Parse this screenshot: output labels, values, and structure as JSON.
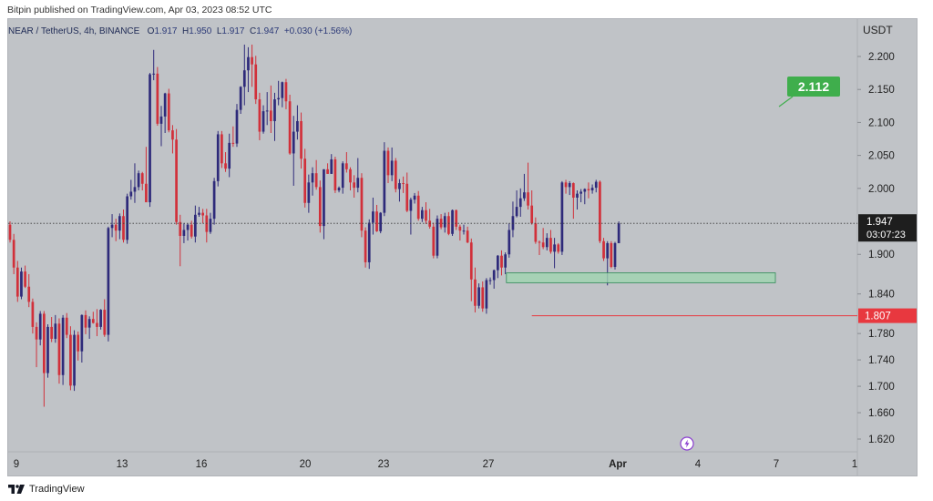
{
  "header": {
    "published_text": "Bitpin published on TradingView.com, Apr 03, 2023 08:52 UTC"
  },
  "symbol": {
    "name": "NEAR / TetherUS, 4h, BINANCE",
    "o_label": "O",
    "o_value": "1.917",
    "h_label": "H",
    "h_value": "1.950",
    "l_label": "L",
    "l_value": "1.917",
    "c_label": "C",
    "c_value": "1.947",
    "change": "+0.030 (+1.56%)"
  },
  "footer": {
    "brand": "TradingView"
  },
  "colors": {
    "up": "#2e2a7a",
    "down": "#d1303a",
    "zone_fill": "#9fd5b0",
    "zone_stroke": "#2e8b57",
    "target_green": "#3fae4c",
    "stop_red": "#e8383f",
    "price_box": "#1e1e1e",
    "plot_bg": "#c0c3c7"
  },
  "chart_data": {
    "type": "candlestick",
    "title": "NEAR / TetherUS, 4h, BINANCE",
    "y_axis_unit": "USDT",
    "ylim": [
      1.595,
      2.26
    ],
    "y_ticks": [
      "2.200",
      "2.150",
      "2.100",
      "2.050",
      "2.000",
      "1.900",
      "1.840",
      "1.780",
      "1.740",
      "1.700",
      "1.660",
      "1.620"
    ],
    "x_tick_labels": [
      "9",
      "13",
      "16",
      "20",
      "23",
      "27",
      "Apr",
      "4",
      "7",
      "1"
    ],
    "current_price": {
      "price": 1.947,
      "label": "1.947",
      "countdown": "03:07:23"
    },
    "annotations": {
      "target": {
        "label": "2.112",
        "value": 2.112
      },
      "stop": {
        "label": "1.807",
        "value": 1.807
      },
      "demand_zone": {
        "low": 1.857,
        "high": 1.872
      }
    },
    "candles": [
      [
        1.945,
        1.95,
        1.918,
        1.922
      ],
      [
        1.922,
        1.931,
        1.87,
        1.88
      ],
      [
        1.88,
        1.89,
        1.828,
        1.836
      ],
      [
        1.836,
        1.88,
        1.832,
        1.874
      ],
      [
        1.874,
        1.883,
        1.849,
        1.851
      ],
      [
        1.851,
        1.87,
        1.82,
        1.828
      ],
      [
        1.828,
        1.833,
        1.78,
        1.79
      ],
      [
        1.79,
        1.797,
        1.729,
        1.771
      ],
      [
        1.771,
        1.814,
        1.762,
        1.81
      ],
      [
        1.81,
        1.814,
        1.669,
        1.72
      ],
      [
        1.72,
        1.794,
        1.713,
        1.79
      ],
      [
        1.79,
        1.805,
        1.767,
        1.772
      ],
      [
        1.772,
        1.808,
        1.766,
        1.795
      ],
      [
        1.795,
        1.803,
        1.704,
        1.717
      ],
      [
        1.717,
        1.808,
        1.702,
        1.804
      ],
      [
        1.804,
        1.811,
        1.773,
        1.778
      ],
      [
        1.778,
        1.791,
        1.694,
        1.701
      ],
      [
        1.701,
        1.785,
        1.693,
        1.778
      ],
      [
        1.778,
        1.783,
        1.739,
        1.753
      ],
      [
        1.753,
        1.809,
        1.736,
        1.808
      ],
      [
        1.808,
        1.815,
        1.779,
        1.789
      ],
      [
        1.789,
        1.806,
        1.772,
        1.802
      ],
      [
        1.802,
        1.813,
        1.795,
        1.796
      ],
      [
        1.796,
        1.817,
        1.776,
        1.79
      ],
      [
        1.79,
        1.817,
        1.786,
        1.816
      ],
      [
        1.816,
        1.832,
        1.775,
        1.778
      ],
      [
        1.778,
        1.942,
        1.768,
        1.94
      ],
      [
        1.94,
        1.961,
        1.926,
        1.945
      ],
      [
        1.945,
        1.954,
        1.92,
        1.936
      ],
      [
        1.936,
        1.962,
        1.923,
        1.958
      ],
      [
        1.958,
        1.968,
        1.918,
        1.922
      ],
      [
        1.922,
        1.992,
        1.916,
        1.988
      ],
      [
        1.988,
        2.013,
        1.983,
        1.995
      ],
      [
        1.995,
        2.038,
        1.978,
        2.002
      ],
      [
        2.002,
        2.027,
        1.997,
        2.023
      ],
      [
        2.023,
        2.025,
        1.997,
        2.007
      ],
      [
        2.007,
        2.063,
        1.979,
        1.979
      ],
      [
        1.979,
        2.175,
        1.972,
        2.173
      ],
      [
        2.173,
        2.21,
        2.164,
        2.174
      ],
      [
        2.174,
        2.184,
        2.095,
        2.098
      ],
      [
        2.098,
        2.125,
        2.064,
        2.109
      ],
      [
        2.109,
        2.145,
        2.084,
        2.144
      ],
      [
        2.144,
        2.151,
        2.085,
        2.088
      ],
      [
        2.088,
        2.096,
        2.053,
        2.074
      ],
      [
        2.074,
        2.09,
        1.945,
        1.949
      ],
      [
        1.949,
        1.96,
        1.882,
        1.928
      ],
      [
        1.928,
        1.947,
        1.917,
        1.937
      ],
      [
        1.937,
        1.947,
        1.921,
        1.945
      ],
      [
        1.945,
        1.951,
        1.924,
        1.927
      ],
      [
        1.927,
        1.974,
        1.918,
        1.96
      ],
      [
        1.96,
        1.972,
        1.957,
        1.963
      ],
      [
        1.963,
        1.969,
        1.947,
        1.959
      ],
      [
        1.959,
        1.969,
        1.918,
        1.934
      ],
      [
        1.934,
        1.963,
        1.931,
        1.954
      ],
      [
        1.954,
        2.016,
        1.945,
        2.011
      ],
      [
        2.011,
        2.087,
        2.003,
        2.082
      ],
      [
        2.082,
        2.087,
        2.031,
        2.038
      ],
      [
        2.038,
        2.055,
        2.025,
        2.03
      ],
      [
        2.03,
        2.083,
        2.017,
        2.069
      ],
      [
        2.069,
        2.094,
        2.063,
        2.068
      ],
      [
        2.068,
        2.128,
        2.063,
        2.119
      ],
      [
        2.119,
        2.155,
        2.113,
        2.154
      ],
      [
        2.154,
        2.218,
        2.126,
        2.179
      ],
      [
        2.179,
        2.214,
        2.146,
        2.199
      ],
      [
        2.199,
        2.218,
        2.154,
        2.188
      ],
      [
        2.188,
        2.201,
        2.128,
        2.135
      ],
      [
        2.135,
        2.145,
        2.073,
        2.086
      ],
      [
        2.086,
        2.126,
        2.083,
        2.117
      ],
      [
        2.117,
        2.146,
        2.096,
        2.118
      ],
      [
        2.118,
        2.156,
        2.084,
        2.102
      ],
      [
        2.102,
        2.145,
        2.072,
        2.135
      ],
      [
        2.135,
        2.163,
        2.126,
        2.137
      ],
      [
        2.137,
        2.162,
        2.123,
        2.161
      ],
      [
        2.161,
        2.166,
        2.12,
        2.132
      ],
      [
        2.132,
        2.142,
        2.051,
        2.053
      ],
      [
        2.053,
        2.11,
        2.004,
        2.086
      ],
      [
        2.086,
        2.126,
        2.074,
        2.102
      ],
      [
        2.102,
        2.115,
        2.03,
        2.045
      ],
      [
        2.045,
        2.06,
        1.971,
        1.978
      ],
      [
        1.978,
        2.021,
        1.963,
        2.009
      ],
      [
        2.009,
        2.032,
        1.989,
        2.023
      ],
      [
        2.023,
        2.043,
        1.998,
        2.002
      ],
      [
        2.002,
        2.012,
        1.933,
        1.943
      ],
      [
        1.943,
        2.029,
        1.923,
        2.029
      ],
      [
        2.029,
        2.038,
        2.022,
        2.022
      ],
      [
        2.022,
        2.052,
        2.022,
        2.044
      ],
      [
        2.044,
        2.048,
        1.993,
        1.997
      ],
      [
        1.997,
        2.003,
        1.994,
        2.001
      ],
      [
        2.001,
        2.041,
        1.992,
        2.038
      ],
      [
        2.038,
        2.055,
        2.024,
        2.029
      ],
      [
        2.029,
        2.032,
        1.997,
        2.009
      ],
      [
        2.009,
        2.02,
        1.986,
        2.001
      ],
      [
        2.001,
        2.046,
        1.994,
        2.016
      ],
      [
        2.016,
        2.023,
        1.926,
        1.936
      ],
      [
        1.936,
        1.941,
        1.88,
        1.888
      ],
      [
        1.888,
        1.953,
        1.878,
        1.948
      ],
      [
        1.948,
        1.986,
        1.93,
        1.965
      ],
      [
        1.965,
        1.975,
        1.934,
        1.935
      ],
      [
        1.935,
        1.964,
        1.932,
        1.963
      ],
      [
        1.963,
        2.07,
        1.958,
        2.057
      ],
      [
        2.057,
        2.062,
        2.008,
        2.02
      ],
      [
        2.02,
        2.062,
        2.011,
        2.042
      ],
      [
        2.042,
        2.046,
        1.994,
        1.999
      ],
      [
        1.999,
        2.014,
        1.98,
        2.008
      ],
      [
        2.008,
        2.018,
        1.993,
        2.007
      ],
      [
        2.007,
        2.024,
        1.964,
        1.966
      ],
      [
        1.966,
        1.986,
        1.93,
        1.983
      ],
      [
        1.983,
        1.993,
        1.977,
        1.989
      ],
      [
        1.989,
        1.996,
        1.951,
        1.954
      ],
      [
        1.954,
        1.972,
        1.949,
        1.967
      ],
      [
        1.967,
        1.979,
        1.946,
        1.951
      ],
      [
        1.951,
        1.969,
        1.939,
        1.942
      ],
      [
        1.942,
        1.948,
        1.894,
        1.898
      ],
      [
        1.898,
        1.959,
        1.894,
        1.954
      ],
      [
        1.954,
        1.961,
        1.938,
        1.941
      ],
      [
        1.941,
        1.963,
        1.933,
        1.958
      ],
      [
        1.958,
        1.964,
        1.929,
        1.931
      ],
      [
        1.931,
        1.968,
        1.928,
        1.967
      ],
      [
        1.967,
        1.968,
        1.937,
        1.942
      ],
      [
        1.942,
        1.945,
        1.921,
        1.936
      ],
      [
        1.936,
        1.945,
        1.93,
        1.936
      ],
      [
        1.936,
        1.942,
        1.917,
        1.918
      ],
      [
        1.918,
        1.924,
        1.829,
        1.862
      ],
      [
        1.862,
        1.88,
        1.812,
        1.822
      ],
      [
        1.822,
        1.856,
        1.818,
        1.85
      ],
      [
        1.85,
        1.859,
        1.813,
        1.818
      ],
      [
        1.818,
        1.864,
        1.81,
        1.861
      ],
      [
        1.861,
        1.865,
        1.854,
        1.861
      ],
      [
        1.861,
        1.877,
        1.848,
        1.876
      ],
      [
        1.876,
        1.899,
        1.864,
        1.898
      ],
      [
        1.898,
        1.906,
        1.868,
        1.88
      ],
      [
        1.88,
        1.903,
        1.87,
        1.9
      ],
      [
        1.9,
        1.947,
        1.895,
        1.937
      ],
      [
        1.937,
        1.98,
        1.926,
        1.958
      ],
      [
        1.958,
        1.997,
        1.956,
        1.972
      ],
      [
        1.972,
        2.0,
        1.957,
        1.985
      ],
      [
        1.985,
        2.022,
        1.981,
        1.994
      ],
      [
        1.994,
        2.039,
        1.968,
        1.974
      ],
      [
        1.974,
        1.997,
        1.945,
        1.947
      ],
      [
        1.947,
        1.956,
        1.916,
        1.919
      ],
      [
        1.919,
        1.921,
        1.899,
        1.918
      ],
      [
        1.918,
        1.94,
        1.908,
        1.911
      ],
      [
        1.911,
        1.932,
        1.906,
        1.925
      ],
      [
        1.925,
        1.937,
        1.901,
        1.904
      ],
      [
        1.904,
        1.925,
        1.879,
        1.915
      ],
      [
        1.915,
        1.917,
        1.901,
        1.904
      ],
      [
        1.904,
        2.011,
        1.899,
        2.009
      ],
      [
        2.009,
        2.013,
        1.992,
        2.002
      ],
      [
        2.002,
        2.011,
        1.99,
        2.008
      ],
      [
        2.008,
        2.009,
        1.954,
        1.986
      ],
      [
        1.986,
        1.997,
        1.968,
        1.992
      ],
      [
        1.992,
        1.999,
        1.979,
        1.995
      ],
      [
        1.995,
        2.0,
        1.976,
        1.999
      ],
      [
        1.999,
        2.009,
        1.985,
        1.997
      ],
      [
        1.997,
        2.006,
        1.992,
        2.001
      ],
      [
        2.001,
        2.013,
        1.994,
        2.01
      ],
      [
        2.01,
        2.012,
        1.917,
        1.92
      ],
      [
        1.92,
        1.925,
        1.89,
        1.894
      ],
      [
        1.894,
        1.92,
        1.853,
        1.917
      ],
      [
        1.917,
        1.92,
        1.879,
        1.881
      ],
      [
        1.881,
        1.919,
        1.877,
        1.917
      ],
      [
        1.917,
        1.95,
        1.917,
        1.947
      ]
    ]
  }
}
